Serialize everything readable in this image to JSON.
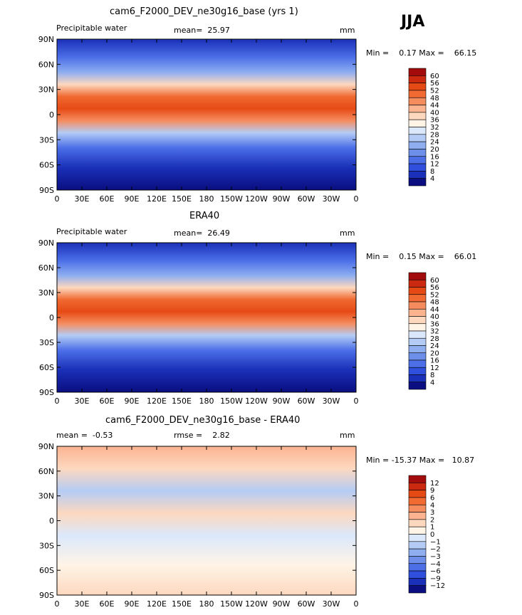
{
  "season": "JJA",
  "panels": [
    {
      "title": "cam6_F2000_DEV_ne30g16_base (yrs 1)",
      "left_label": "Precipitable water",
      "mid_label": "mean=",
      "mid_value": "25.97",
      "units": "mm",
      "min_label": "Min =",
      "min_value": "0.17",
      "max_label": "Max =",
      "max_value": "66.15",
      "colorbar_labels": [
        "60",
        "56",
        "52",
        "48",
        "44",
        "40",
        "36",
        "32",
        "28",
        "24",
        "20",
        "16",
        "12",
        "8",
        "4"
      ],
      "colorbar_colors": [
        "#a30c0c",
        "#cc2a10",
        "#e64a14",
        "#f06a32",
        "#f58c5e",
        "#fbb390",
        "#fdd8bf",
        "#fff4e6",
        "#dbe8fb",
        "#b4ccf5",
        "#8eaef0",
        "#6d8fea",
        "#4c6fe8",
        "#2f4fdc",
        "#1a30b8",
        "#0a0e80"
      ],
      "xticks": [
        "0",
        "30E",
        "60E",
        "90E",
        "120E",
        "150E",
        "180",
        "150W",
        "120W",
        "90W",
        "60W",
        "30W",
        "0"
      ],
      "yticks": [
        "90N",
        "60N",
        "30N",
        "0",
        "30S",
        "60S",
        "90S"
      ]
    },
    {
      "title": "ERA40",
      "left_label": "Precipitable water",
      "mid_label": "mean=",
      "mid_value": "26.49",
      "units": "mm",
      "min_label": "Min =",
      "min_value": "0.15",
      "max_label": "Max =",
      "max_value": "66.01",
      "colorbar_labels": [
        "60",
        "56",
        "52",
        "48",
        "44",
        "40",
        "36",
        "32",
        "28",
        "24",
        "20",
        "16",
        "12",
        "8",
        "4"
      ],
      "colorbar_colors": [
        "#a30c0c",
        "#cc2a10",
        "#e64a14",
        "#f06a32",
        "#f58c5e",
        "#fbb390",
        "#fdd8bf",
        "#fff4e6",
        "#dbe8fb",
        "#b4ccf5",
        "#8eaef0",
        "#6d8fea",
        "#4c6fe8",
        "#2f4fdc",
        "#1a30b8",
        "#0a0e80"
      ],
      "xticks": [
        "0",
        "30E",
        "60E",
        "90E",
        "120E",
        "150E",
        "180",
        "150W",
        "120W",
        "90W",
        "60W",
        "30W",
        "0"
      ],
      "yticks": [
        "90N",
        "60N",
        "30N",
        "0",
        "30S",
        "60S",
        "90S"
      ]
    },
    {
      "title": "cam6_F2000_DEV_ne30g16_base - ERA40",
      "left_label": "mean =",
      "left_value": "-0.53",
      "mid_label": "rmse =",
      "mid_value": "2.82",
      "units": "mm",
      "min_label": "Min =",
      "min_value": "-15.37",
      "max_label": "Max =",
      "max_value": "10.87",
      "colorbar_labels": [
        "12",
        "9",
        "6",
        "4",
        "3",
        "2",
        "1",
        "0",
        "−1",
        "−2",
        "−3",
        "−4",
        "−6",
        "−9",
        "−12"
      ],
      "colorbar_colors": [
        "#a30c0c",
        "#cc2a10",
        "#e64a14",
        "#f06a32",
        "#f58c5e",
        "#fbb390",
        "#fdd8bf",
        "#fff4e6",
        "#dbe8fb",
        "#b4ccf5",
        "#8eaef0",
        "#6d8fea",
        "#4c6fe8",
        "#2f4fdc",
        "#1a30b8",
        "#0a0e80"
      ],
      "xticks": [
        "0",
        "30E",
        "60E",
        "90E",
        "120E",
        "150E",
        "180",
        "150W",
        "120W",
        "90W",
        "60W",
        "30W",
        "0"
      ],
      "yticks": [
        "90N",
        "60N",
        "30N",
        "0",
        "30S",
        "60S",
        "90S"
      ]
    }
  ],
  "chart_data": [
    {
      "type": "heatmap",
      "title": "cam6_F2000_DEV_ne30g16_base (yrs 1)",
      "xlim": [
        0,
        360
      ],
      "ylim": [
        -90,
        90
      ],
      "levels": [
        4,
        8,
        12,
        16,
        20,
        24,
        28,
        32,
        36,
        40,
        44,
        48,
        52,
        56,
        60
      ],
      "mean": 25.97,
      "min": 0.17,
      "max": 66.15,
      "units": "mm"
    },
    {
      "type": "heatmap",
      "title": "ERA40",
      "xlim": [
        0,
        360
      ],
      "ylim": [
        -90,
        90
      ],
      "levels": [
        4,
        8,
        12,
        16,
        20,
        24,
        28,
        32,
        36,
        40,
        44,
        48,
        52,
        56,
        60
      ],
      "mean": 26.49,
      "min": 0.15,
      "max": 66.01,
      "units": "mm"
    },
    {
      "type": "heatmap",
      "title": "cam6_F2000_DEV_ne30g16_base - ERA40",
      "xlim": [
        0,
        360
      ],
      "ylim": [
        -90,
        90
      ],
      "levels": [
        -12,
        -9,
        -6,
        -4,
        -3,
        -2,
        -1,
        0,
        1,
        2,
        3,
        4,
        6,
        9,
        12
      ],
      "mean": -0.53,
      "rmse": 2.82,
      "min": -15.37,
      "max": 10.87,
      "units": "mm"
    }
  ]
}
